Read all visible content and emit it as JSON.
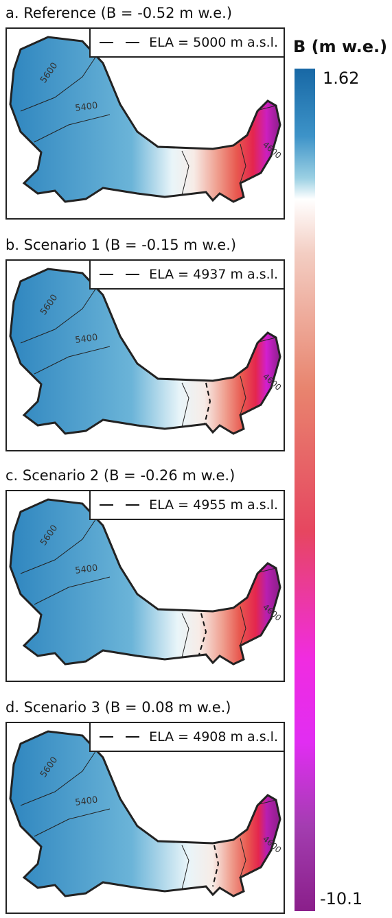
{
  "panels": [
    {
      "title": "a. Reference (B = -0.52 m w.e.)",
      "legend": "ELA = 5000 m a.s.l.",
      "has_scenario_ela_line": false,
      "contour_labels": {
        "c5600": "5600",
        "c5400": "5400",
        "c4600": "4600"
      }
    },
    {
      "title": "b. Scenario 1 (B = -0.15 m w.e.)",
      "legend": "ELA = 4937 m a.s.l.",
      "has_scenario_ela_line": true,
      "contour_labels": {
        "c5600": "5600",
        "c5400": "5400",
        "c4600": "4600"
      }
    },
    {
      "title": "c. Scenario 2 (B = -0.26 m w.e.)",
      "legend": "ELA = 4955 m a.s.l.",
      "has_scenario_ela_line": true,
      "contour_labels": {
        "c5600": "5600",
        "c5400": "5400",
        "c4600": "4600"
      }
    },
    {
      "title": "d. Scenario 3 (B = 0.08 m w.e.)",
      "legend": "ELA = 4908 m a.s.l.",
      "has_scenario_ela_line": true,
      "contour_labels": {
        "c5600": "5600",
        "c5400": "5400",
        "c4600": "4600"
      }
    }
  ],
  "colorbar": {
    "title": "B (m w.e.)",
    "max_label": "1.62",
    "min_label": "-10.1",
    "colors": [
      "#1868a5",
      "#3d93c8",
      "#ffffff",
      "#e8846e",
      "#e64660",
      "#e12df2",
      "#8a1f8a"
    ]
  }
}
